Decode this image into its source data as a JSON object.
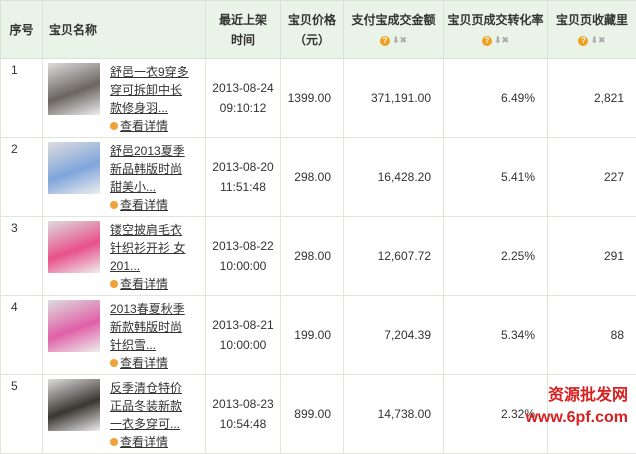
{
  "headers": {
    "index": "序号",
    "name": "宝贝名称",
    "time_1": "最近上架",
    "time_2": "时间",
    "price_1": "宝贝价格",
    "price_2": "（元）",
    "amount": "支付宝成交金额",
    "conversion": "宝贝页成交转化率",
    "favorites": "宝贝页收藏里"
  },
  "detail_label": "查看详情",
  "rows": [
    {
      "index": "1",
      "title": "舒邑一衣9穿多穿可拆卸中长款修身羽...",
      "date": "2013-08-24",
      "time": "09:10:12",
      "price": "1399.00",
      "amount": "371,191.00",
      "conversion": "6.49%",
      "favorites": "2,821",
      "thumb_color": "#6b6560"
    },
    {
      "index": "2",
      "title": "舒邑2013夏季新品韩版时尚甜美小...",
      "date": "2013-08-20",
      "time": "11:51:48",
      "price": "298.00",
      "amount": "16,428.20",
      "conversion": "5.41%",
      "favorites": "227",
      "thumb_color": "#7fa5dc"
    },
    {
      "index": "3",
      "title": "镂空披肩毛衣针织衫开衫 女 201...",
      "date": "2013-08-22",
      "time": "10:00:00",
      "price": "298.00",
      "amount": "12,607.72",
      "conversion": "2.25%",
      "favorites": "291",
      "thumb_color": "#e8508a"
    },
    {
      "index": "4",
      "title": "2013春夏秋季新款韩版时尚针织雪...",
      "date": "2013-08-21",
      "time": "10:00:00",
      "price": "199.00",
      "amount": "7,204.39",
      "conversion": "5.34%",
      "favorites": "88",
      "thumb_color": "#e060a8"
    },
    {
      "index": "5",
      "title": "反季清仓特价正品冬装新款一衣多穿可...",
      "date": "2013-08-23",
      "time": "10:54:48",
      "price": "899.00",
      "amount": "14,738.00",
      "conversion": "2.32%",
      "favorites": "",
      "thumb_color": "#3a3530"
    }
  ],
  "watermark": {
    "line1": "资源批发网",
    "line2": "www.6pf.com"
  }
}
